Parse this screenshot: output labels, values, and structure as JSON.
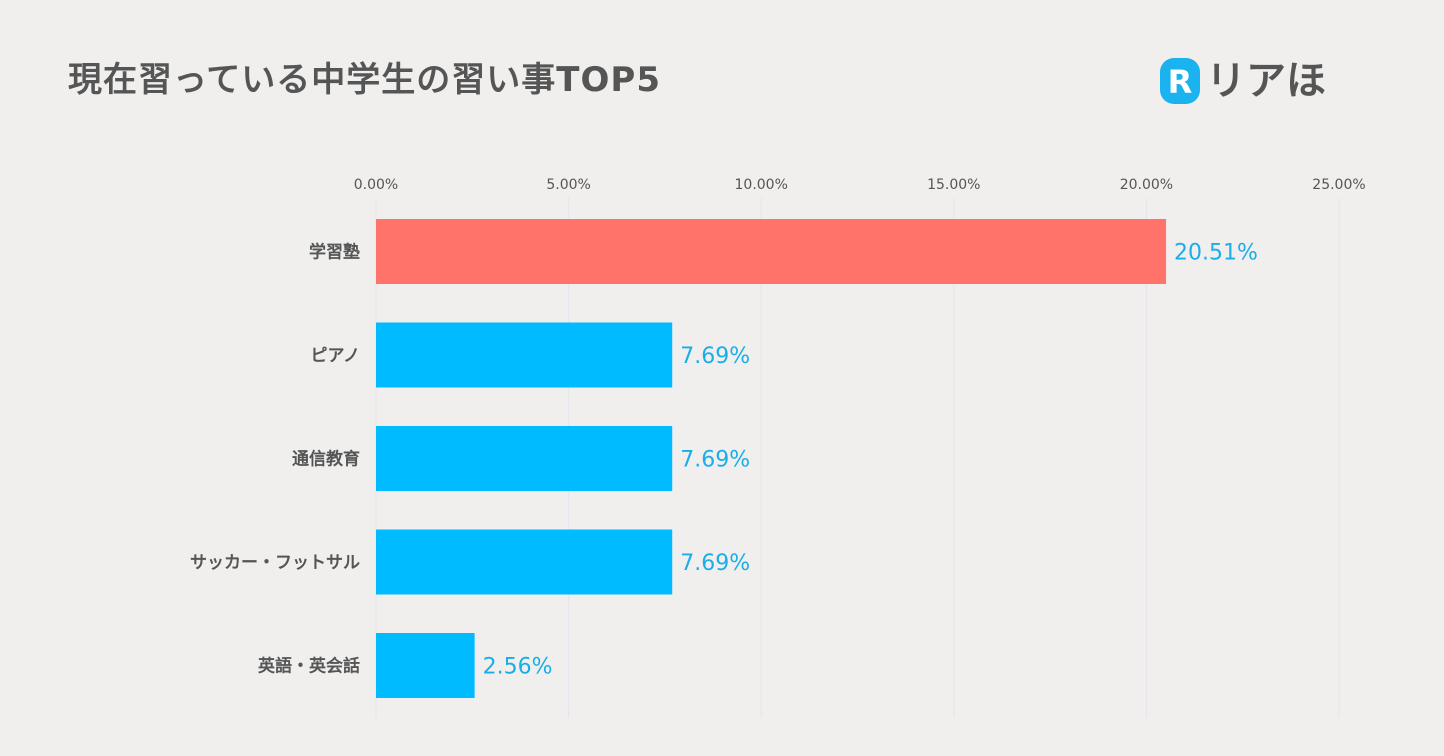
{
  "header": {
    "title": "現在習っている中学生の習い事TOP5",
    "logo_text": "リアほ",
    "logo_mark": "R",
    "logo_icon": "brand-r-logo-icon"
  },
  "colors": {
    "highlight": "#ff736a",
    "bar": "#00bbff",
    "value_label": "#1aaee8",
    "grid": "#e4e4ee",
    "text": "#555555",
    "background": "#f0efee"
  },
  "chart_data": {
    "type": "bar",
    "orientation": "horizontal",
    "title": "現在習っている中学生の習い事TOP5",
    "categories": [
      "学習塾",
      "ピアノ",
      "通信教育",
      "サッカー・フットサル",
      "英語・英会話"
    ],
    "values": [
      20.51,
      7.69,
      7.69,
      7.69,
      2.56
    ],
    "value_labels": [
      "20.51%",
      "7.69%",
      "7.69%",
      "7.69%",
      "2.56%"
    ],
    "highlight_index": 0,
    "xlim": [
      0,
      25
    ],
    "xticks": [
      0,
      5,
      10,
      15,
      20,
      25
    ],
    "xtick_labels": [
      "0.00%",
      "5.00%",
      "10.00%",
      "15.00%",
      "20.00%",
      "25.00%"
    ],
    "axis_position": "top",
    "grid": true,
    "legend": "none"
  }
}
